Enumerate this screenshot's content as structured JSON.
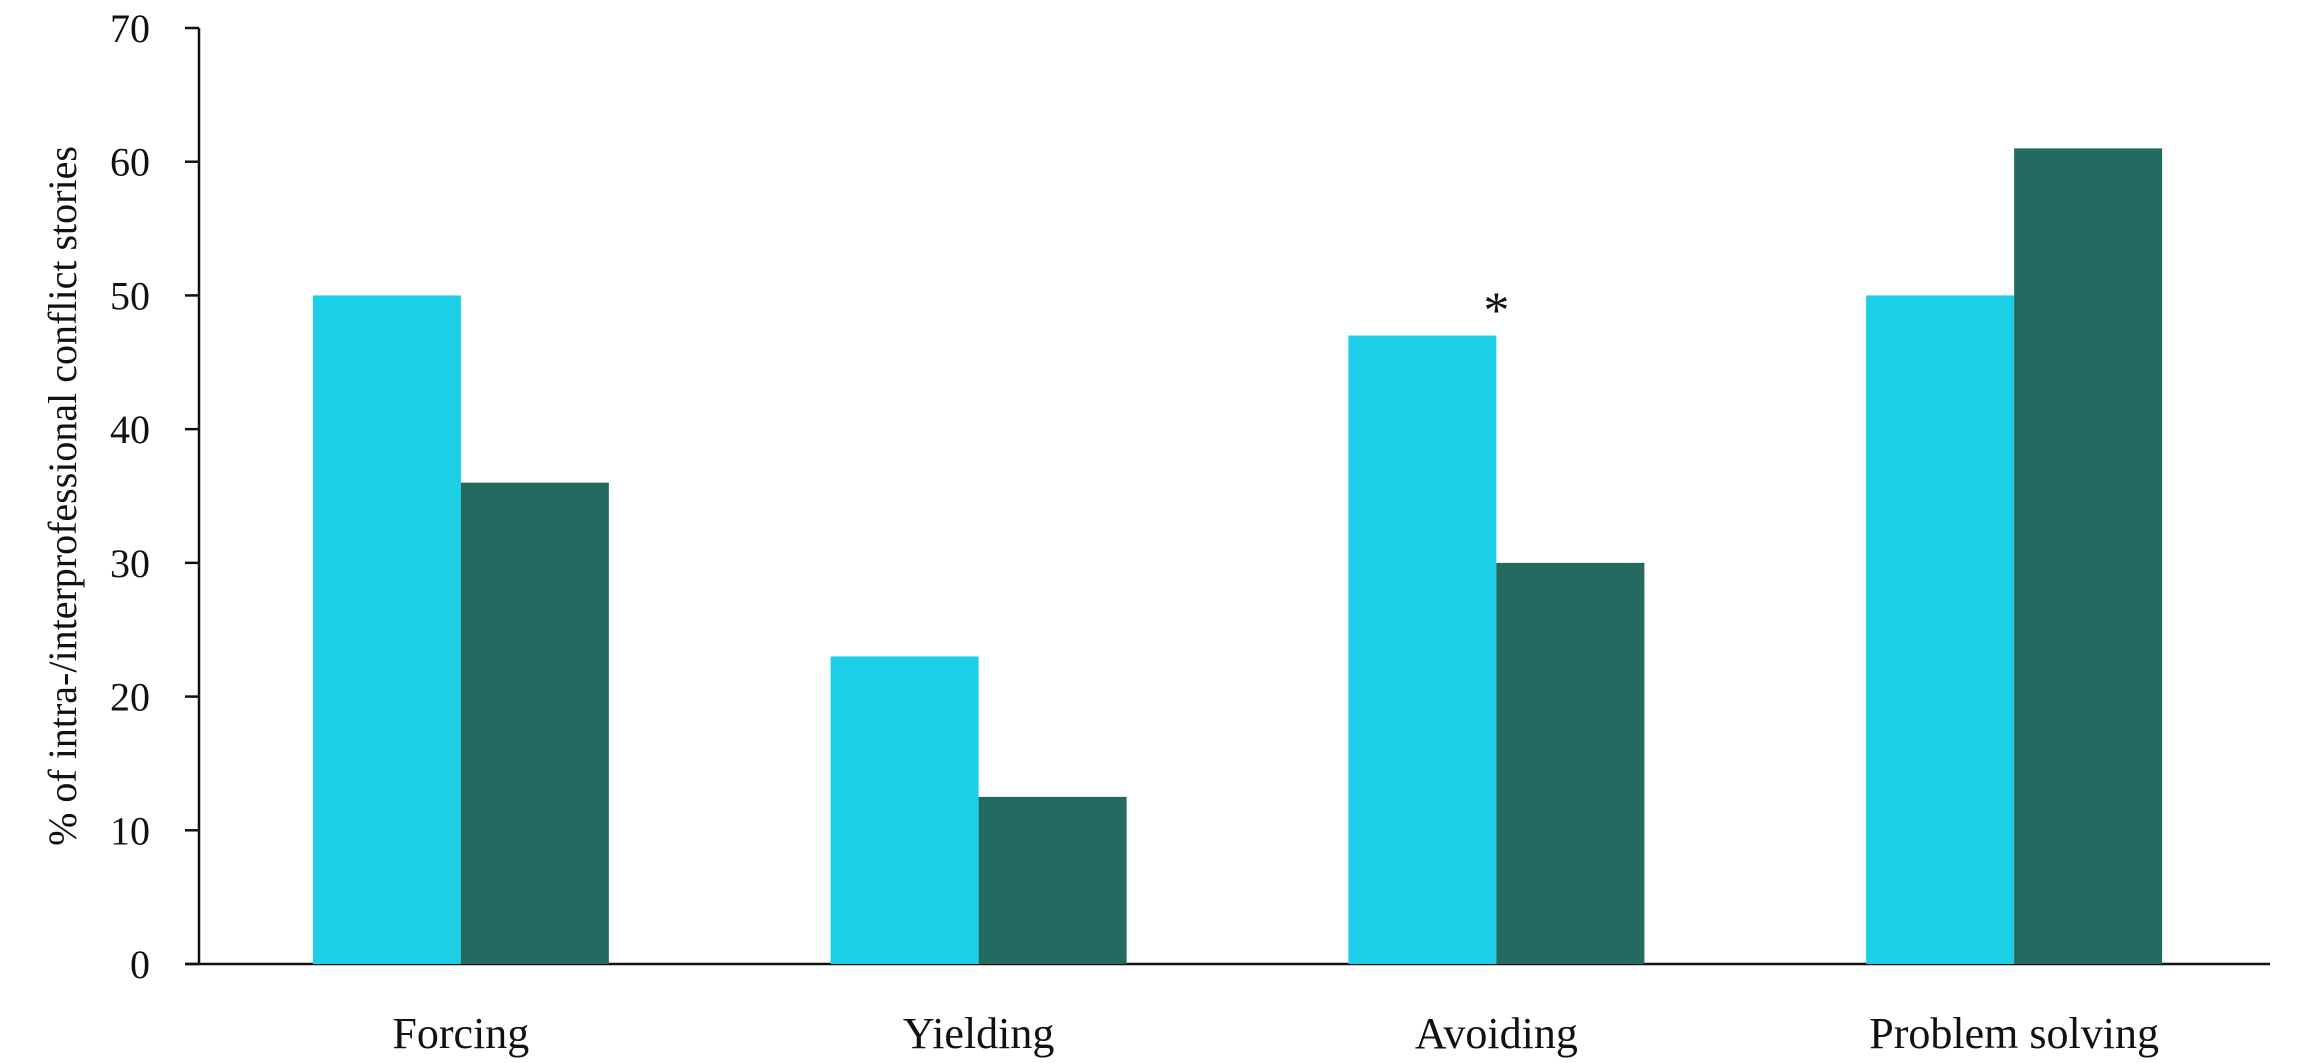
{
  "chart_data": {
    "type": "bar",
    "title": "",
    "xlabel": "",
    "ylabel": "% of intra-/interprofessional conflict stories",
    "ylim": [
      0,
      70
    ],
    "yticks": [
      0,
      10,
      20,
      30,
      40,
      50,
      60,
      70
    ],
    "grid": false,
    "categories": [
      "Forcing",
      "Yielding",
      "Avoiding",
      "Problem solving"
    ],
    "series": [
      {
        "color": "#1ccee6",
        "values": [
          50,
          23,
          47,
          50
        ]
      },
      {
        "color": "#236b60",
        "values": [
          36,
          12.5,
          30,
          61
        ]
      }
    ],
    "annotations": [
      {
        "text": "*",
        "category": "Avoiding"
      }
    ]
  }
}
